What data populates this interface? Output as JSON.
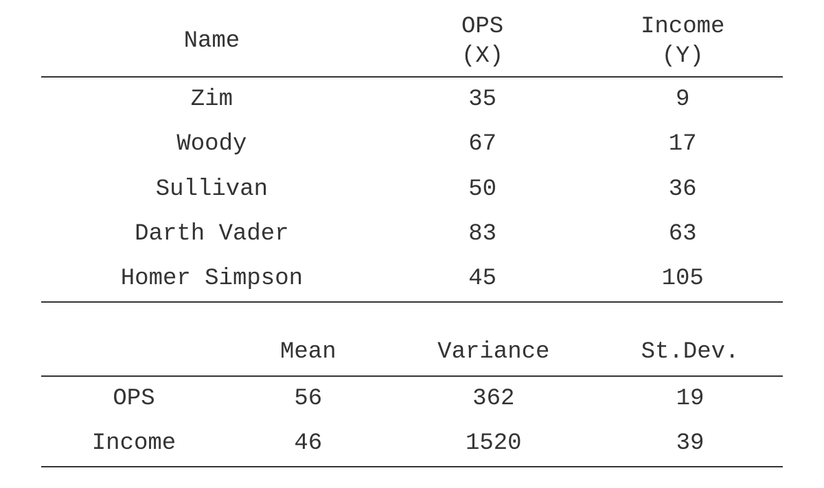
{
  "data_table": {
    "type": "table",
    "font_family": "Courier New",
    "font_size_pt": 26,
    "text_color": "#333333",
    "border_color": "#333333",
    "background_color": "#ffffff",
    "columns": {
      "name": {
        "header_line1": "Name",
        "header_line2": "",
        "align": "center",
        "width_pct": 46
      },
      "ops": {
        "header_line1": "OPS",
        "header_line2": "(X)",
        "align": "center",
        "width_pct": 27
      },
      "income": {
        "header_line1": "Income",
        "header_line2": "(Y)",
        "align": "center",
        "width_pct": 27
      }
    },
    "rows": [
      {
        "name": "Zim",
        "ops": "35",
        "income": "9"
      },
      {
        "name": "Woody",
        "ops": "67",
        "income": "17"
      },
      {
        "name": "Sullivan",
        "ops": "50",
        "income": "36"
      },
      {
        "name": "Darth Vader",
        "ops": "83",
        "income": "63"
      },
      {
        "name": "Homer Simpson",
        "ops": "45",
        "income": "105"
      }
    ]
  },
  "stats_table": {
    "type": "table",
    "font_family": "Courier New",
    "font_size_pt": 26,
    "text_color": "#333333",
    "border_color": "#333333",
    "background_color": "#ffffff",
    "columns": {
      "label": {
        "header": "",
        "align": "center",
        "width_pct": 25
      },
      "mean": {
        "header": "Mean",
        "align": "center",
        "width_pct": 22
      },
      "variance": {
        "header": "Variance",
        "align": "center",
        "width_pct": 28
      },
      "stdev": {
        "header": "St.Dev.",
        "align": "center",
        "width_pct": 25
      }
    },
    "rows": [
      {
        "label": "OPS",
        "mean": "56",
        "variance": "362",
        "stdev": "19"
      },
      {
        "label": "Income",
        "mean": "46",
        "variance": "1520",
        "stdev": "39"
      }
    ]
  }
}
